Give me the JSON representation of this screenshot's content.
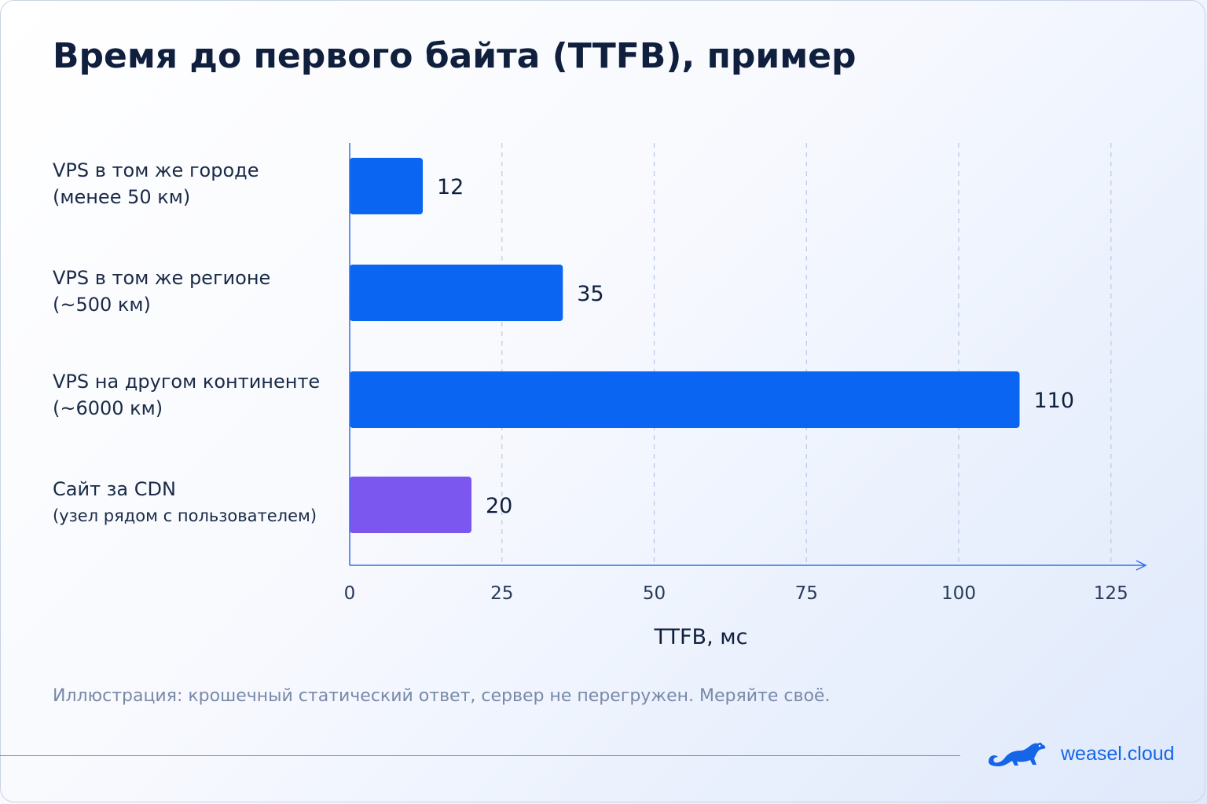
{
  "colors": {
    "bar_primary": "#0a66f2",
    "bar_highlight": "#7b57f0",
    "axis": "#2f6fe8",
    "grid": "#b8c8e6",
    "brand": "#1565e8"
  },
  "chart_data": {
    "type": "bar",
    "orientation": "horizontal",
    "title": "Время до первого байта (TTFB), пример",
    "xlabel": "TTFB, мс",
    "ylabel": "",
    "xlim": [
      0,
      125
    ],
    "xticks": [
      0,
      25,
      50,
      75,
      100,
      125
    ],
    "grid": "vertical-dashed",
    "categories": [
      {
        "line1": "VPS в том же городе",
        "line2": "(менее 50 км)",
        "value": 12,
        "label": "12",
        "color_role": "bar_primary"
      },
      {
        "line1": "VPS в том же регионе",
        "line2": "(~500 км)",
        "value": 35,
        "label": "35",
        "color_role": "bar_primary"
      },
      {
        "line1": "VPS на другом континенте",
        "line2": "(~6000 км)",
        "value": 110,
        "label": "110",
        "color_role": "bar_primary"
      },
      {
        "line1": "Сайт за CDN",
        "line2": "(узел рядом с пользователем)",
        "value": 20,
        "label": "20",
        "color_role": "bar_highlight"
      }
    ]
  },
  "footnote": "Иллюстрация: крошечный статический ответ, сервер не перегружен. Меряйте своё.",
  "brand": {
    "name": "weasel.cloud",
    "icon": "weasel-icon"
  }
}
